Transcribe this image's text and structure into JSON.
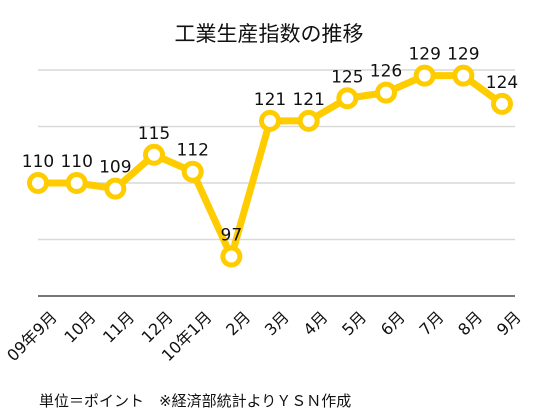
{
  "chart_data": {
    "type": "line",
    "title": "工業生産指数の推移",
    "categories": [
      "09年9月",
      "10月",
      "11月",
      "12月",
      "10年1月",
      "2月",
      "3月",
      "4月",
      "5月",
      "6月",
      "7月",
      "8月",
      "9月"
    ],
    "series": [
      {
        "values": [
          110,
          110,
          109,
          115,
          112,
          97,
          121,
          121,
          125,
          126,
          129,
          129,
          124
        ]
      }
    ],
    "ylim": [
      90,
      130
    ],
    "y_gridlines": [
      100,
      110,
      120,
      130
    ],
    "grid": true,
    "legend": "none",
    "line_color": "#FFCC00",
    "marker_fill": "#FFFFFF",
    "note": "単位＝ポイント　※経済部統計よりＹＳＮ作成"
  }
}
